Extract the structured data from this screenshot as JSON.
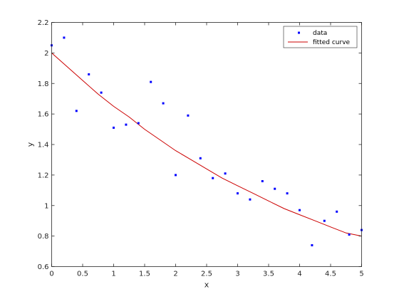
{
  "chart_data": {
    "type": "scatter",
    "xlabel": "x",
    "ylabel": "y",
    "xlim": [
      0,
      5
    ],
    "ylim": [
      0.6,
      2.2
    ],
    "xticks": [
      0,
      0.5,
      1,
      1.5,
      2,
      2.5,
      3,
      3.5,
      4,
      4.5,
      5
    ],
    "xtick_labels": [
      "0",
      "0.5",
      "1",
      "1.5",
      "2",
      "2.5",
      "3",
      "3.5",
      "4",
      "4.5",
      "5"
    ],
    "yticks": [
      0.6,
      0.8,
      1,
      1.2,
      1.4,
      1.6,
      1.8,
      2,
      2.2
    ],
    "ytick_labels": [
      "0.6",
      "0.8",
      "1",
      "1.2",
      "1.4",
      "1.6",
      "1.8",
      "2",
      "2.2"
    ],
    "grid": false,
    "legend_position": "top-right",
    "series": [
      {
        "name": "data",
        "kind": "points",
        "color": "#0000ff",
        "x": [
          0,
          0.2,
          0.4,
          0.6,
          0.8,
          1.0,
          1.2,
          1.4,
          1.6,
          1.8,
          2.0,
          2.2,
          2.4,
          2.6,
          2.8,
          3.0,
          3.2,
          3.4,
          3.6,
          3.8,
          4.0,
          4.2,
          4.4,
          4.6,
          4.8,
          5.0
        ],
        "y": [
          2.05,
          2.1,
          1.62,
          1.86,
          1.74,
          1.51,
          1.53,
          1.54,
          1.81,
          1.67,
          1.2,
          1.59,
          1.31,
          1.18,
          1.21,
          1.08,
          1.04,
          1.16,
          1.11,
          1.08,
          0.97,
          0.74,
          0.9,
          0.96,
          0.81,
          0.84
        ]
      },
      {
        "name": "fitted curve",
        "kind": "line",
        "color": "#cc0000",
        "x": [
          0,
          0.25,
          0.5,
          0.75,
          1.0,
          1.25,
          1.5,
          1.75,
          2.0,
          2.25,
          2.5,
          2.75,
          3.0,
          3.25,
          3.5,
          3.75,
          4.0,
          4.25,
          4.5,
          4.75,
          5.0
        ],
        "y": [
          2.0,
          1.91,
          1.82,
          1.73,
          1.65,
          1.58,
          1.5,
          1.43,
          1.36,
          1.3,
          1.24,
          1.18,
          1.13,
          1.08,
          1.03,
          0.98,
          0.94,
          0.9,
          0.86,
          0.82,
          0.8
        ]
      }
    ]
  }
}
